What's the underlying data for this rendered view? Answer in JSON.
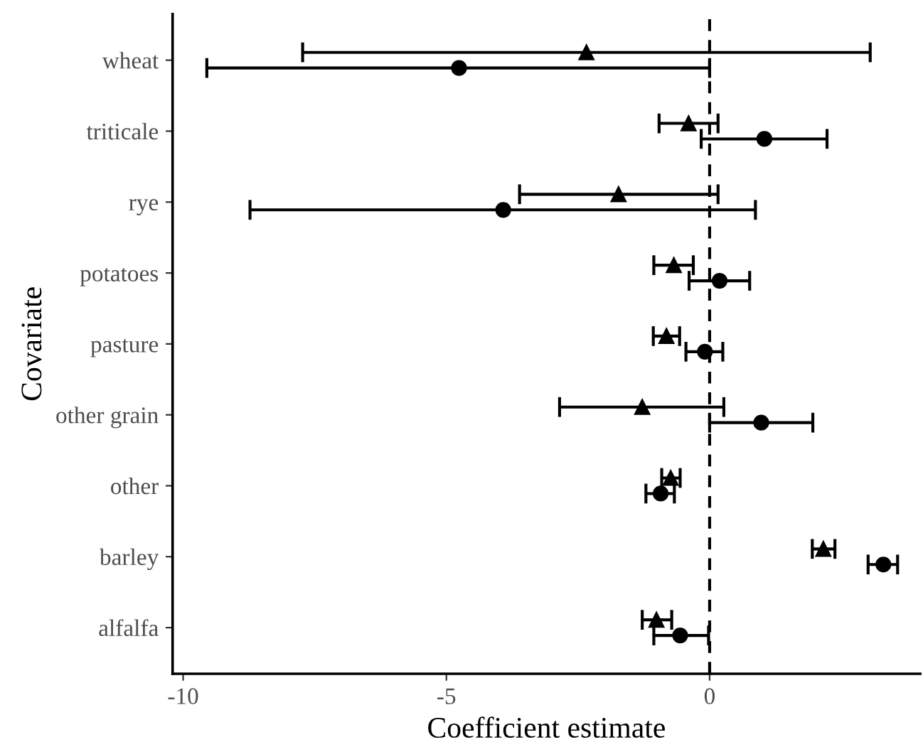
{
  "chart_data": {
    "type": "scatter",
    "orientation": "horizontal",
    "xlabel": "Coefficient estimate",
    "ylabel": "Covariate",
    "categories": [
      "wheat",
      "triticale",
      "rye",
      "potatoes",
      "pasture",
      "other grain",
      "other",
      "barley",
      "alfalfa"
    ],
    "series": [
      {
        "color": "#000000",
        "marker": "triangle",
        "values": [
          -2.34,
          -0.4,
          -1.73,
          -0.68,
          -0.82,
          -1.28,
          -0.74,
          2.16,
          -1.01
        ],
        "errors": [
          [
            -7.73,
            3.05
          ],
          [
            -0.96,
            0.16
          ],
          [
            -3.61,
            0.16
          ],
          [
            -1.06,
            -0.31
          ],
          [
            -1.07,
            -0.57
          ],
          [
            -2.85,
            0.27
          ],
          [
            -0.91,
            -0.56
          ],
          [
            1.95,
            2.38
          ],
          [
            -1.28,
            -0.72
          ]
        ]
      },
      {
        "color": "#000000",
        "marker": "circle",
        "values": [
          -4.76,
          1.04,
          -3.92,
          0.19,
          -0.09,
          0.98,
          -0.93,
          3.3,
          -0.56
        ],
        "errors": [
          [
            -9.55,
            0.0
          ],
          [
            -0.16,
            2.23
          ],
          [
            -8.73,
            0.87
          ],
          [
            -0.39,
            0.76
          ],
          [
            -0.45,
            0.25
          ],
          [
            0.0,
            1.96
          ],
          [
            -1.21,
            -0.67
          ],
          [
            3.01,
            3.57
          ],
          [
            -1.06,
            -0.02
          ]
        ]
      }
    ],
    "xlim": [
      -10.2,
      4.0
    ],
    "xticks": [
      -10,
      -5,
      0
    ],
    "ref_lines": [
      {
        "axis": "x",
        "value": 0,
        "color": "#000000",
        "line_style": "dashed"
      }
    ],
    "grid": false,
    "legend": false
  }
}
